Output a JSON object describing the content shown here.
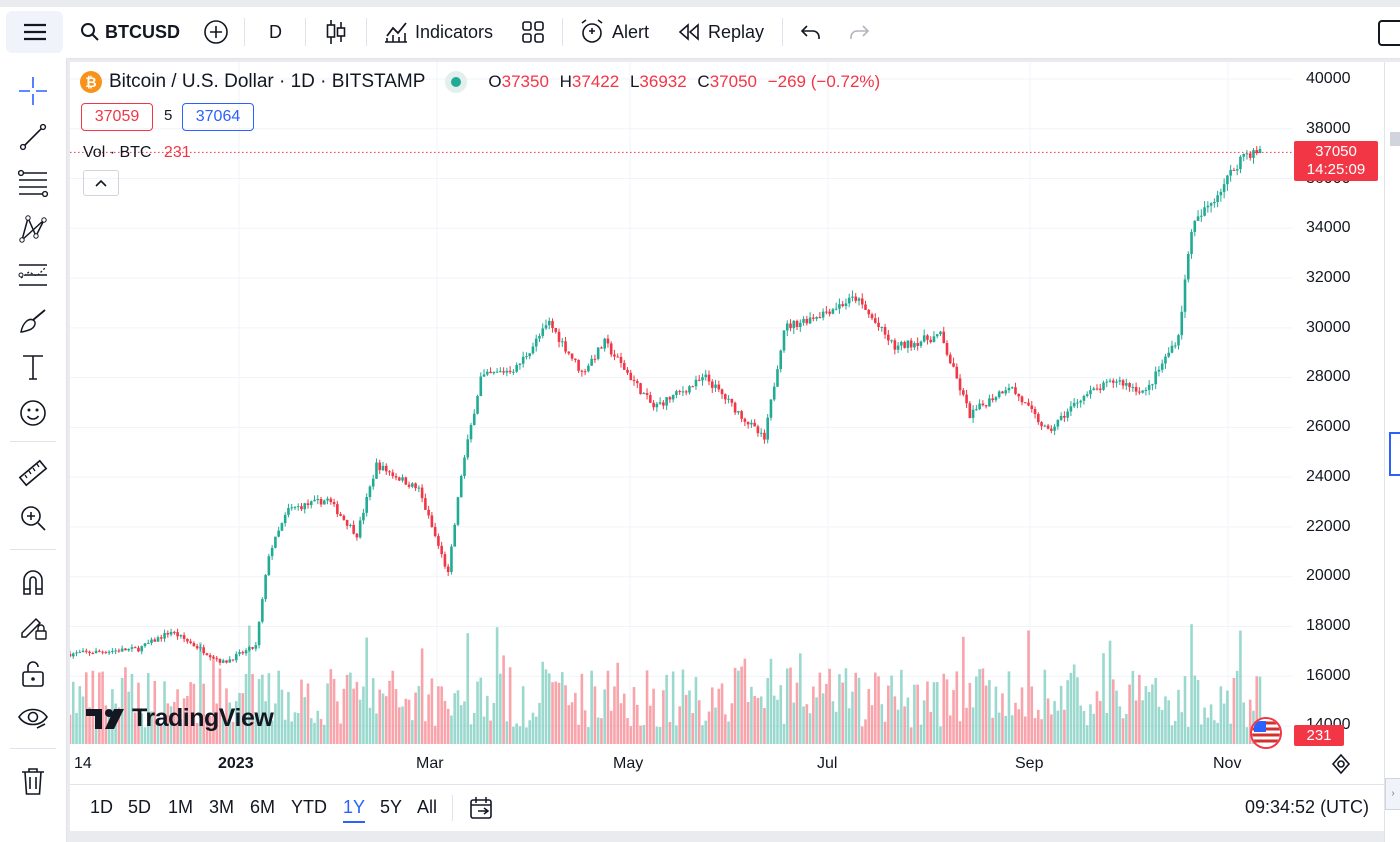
{
  "toolbar": {
    "symbol": "BTCUSD",
    "interval": "D",
    "indicators_label": "Indicators",
    "alert_label": "Alert",
    "replay_label": "Replay"
  },
  "legend": {
    "title": "Bitcoin / U.S. Dollar · 1D · BITSTAMP",
    "o_label": "O",
    "o_value": "37350",
    "h_label": "H",
    "h_value": "37422",
    "l_label": "L",
    "l_value": "36932",
    "c_label": "C",
    "c_value": "37050",
    "change": "−269 (−0.72%)",
    "bid": "37059",
    "spread": "5",
    "ask": "37064",
    "vol_label": "Vol · BTC",
    "vol_value": "231"
  },
  "price_axis": {
    "ticks": [
      "40000",
      "38000",
      "36000",
      "34000",
      "32000",
      "30000",
      "28000",
      "26000",
      "24000",
      "22000",
      "20000",
      "18000",
      "16000",
      "14000"
    ],
    "last_price": "37050",
    "countdown": "14:25:09",
    "volume_label": "231"
  },
  "time_axis": {
    "ticks": [
      "14",
      "2023",
      "Mar",
      "May",
      "Jul",
      "Sep",
      "Nov"
    ]
  },
  "ranges": [
    "1D",
    "5D",
    "1M",
    "3M",
    "6M",
    "YTD",
    "1Y",
    "5Y",
    "All"
  ],
  "active_range": "1Y",
  "clock": "09:34:52 (UTC)",
  "watermark": "TradingView",
  "colors": {
    "up": "#22ab94",
    "down": "#f23645",
    "accent": "#2962ff",
    "text": "#131722",
    "grid": "#f0f3fa"
  },
  "icons": [
    "menu-icon",
    "search-icon",
    "add-symbol-icon",
    "candles-icon",
    "indicators-icon",
    "templates-icon",
    "alert-icon",
    "replay-icon",
    "undo-icon",
    "redo-icon",
    "crosshair-icon",
    "trendline-icon",
    "fib-icon",
    "pattern-icon",
    "projection-icon",
    "brush-icon",
    "text-icon",
    "emoji-icon",
    "ruler-icon",
    "zoom-icon",
    "magnet-icon",
    "lock-draw-icon",
    "lock-icon",
    "eye-icon",
    "trash-icon",
    "calendar-icon",
    "settings-icon"
  ],
  "chart_data": {
    "type": "candlestick",
    "title": "Bitcoin / U.S. Dollar · 1D · BITSTAMP",
    "ylim": [
      14000,
      40000
    ],
    "x_ticks": [
      "2023",
      "Mar",
      "May",
      "Jul",
      "Sep",
      "Nov"
    ],
    "close_anchors": [
      {
        "x": "Nov 14",
        "y": 16900
      },
      {
        "x": "Dec 5",
        "y": 17100
      },
      {
        "x": "Dec 15",
        "y": 17800
      },
      {
        "x": "Dec 31",
        "y": 16550
      },
      {
        "x": "Jan 10",
        "y": 17200
      },
      {
        "x": "Jan 14",
        "y": 20900
      },
      {
        "x": "Jan 20",
        "y": 22700
      },
      {
        "x": "Feb 1",
        "y": 23100
      },
      {
        "x": "Feb 10",
        "y": 21700
      },
      {
        "x": "Feb 16",
        "y": 24500
      },
      {
        "x": "Mar 1",
        "y": 23500
      },
      {
        "x": "Mar 10",
        "y": 20100
      },
      {
        "x": "Mar 14",
        "y": 24100
      },
      {
        "x": "Mar 20",
        "y": 28000
      },
      {
        "x": "Mar 31",
        "y": 28400
      },
      {
        "x": "Apr 10",
        "y": 30200
      },
      {
        "x": "Apr 20",
        "y": 28200
      },
      {
        "x": "Apr 27",
        "y": 29400
      },
      {
        "x": "May 12",
        "y": 26800
      },
      {
        "x": "May 28",
        "y": 28000
      },
      {
        "x": "Jun 15",
        "y": 25500
      },
      {
        "x": "Jun 21",
        "y": 30000
      },
      {
        "x": "Jul 1",
        "y": 30500
      },
      {
        "x": "Jul 13",
        "y": 31200
      },
      {
        "x": "Jul 25",
        "y": 29200
      },
      {
        "x": "Aug 8",
        "y": 29700
      },
      {
        "x": "Aug 17",
        "y": 26500
      },
      {
        "x": "Aug 29",
        "y": 27700
      },
      {
        "x": "Sep 10",
        "y": 25800
      },
      {
        "x": "Sep 20",
        "y": 27200
      },
      {
        "x": "Oct 1",
        "y": 27900
      },
      {
        "x": "Oct 10",
        "y": 27400
      },
      {
        "x": "Oct 20",
        "y": 29700
      },
      {
        "x": "Oct 24",
        "y": 34000
      },
      {
        "x": "Nov 1",
        "y": 35400
      },
      {
        "x": "Nov 9",
        "y": 37000
      },
      {
        "x": "Nov 14",
        "y": 37050
      }
    ]
  }
}
